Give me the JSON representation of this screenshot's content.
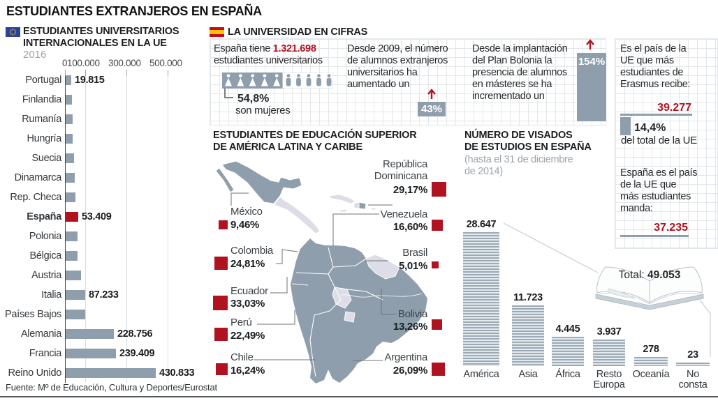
{
  "page_title": "ESTUDIANTES EXTRANJEROS EN ESPAÑA",
  "source_note": "Fuente: Mº de Educación, Cultura y Deportes/Eurostat",
  "colors": {
    "accent_red": "#b0121f",
    "slate_gray": "#8e9eac",
    "light_country": "#dcdde6",
    "grid_line": "#e2e7ea",
    "gray_text": "#9aa4ab"
  },
  "sections": {
    "eu_chart": {
      "title": "ESTUDIANTES UNIVERSITARIOS\nINTERNACIONALES EN LA UE",
      "year": "2016"
    },
    "cifras": {
      "title": "LA UNIVERSIDAD EN CIFRAS",
      "students": {
        "pre": "España tiene ",
        "value": "1.321.698",
        "post": "estudiantes universitarios",
        "women_pct": "54,8%",
        "women_caption": "son mujeres"
      },
      "increase": {
        "text": "Desde 2009, el número\nde alumnos extranjeros\nuniversitarios ha\naumentado un",
        "badge": "43%"
      },
      "bolonia": {
        "text": "Desde la implantación\ndel Plan Bolonia la\npresencia de alumnos\nen másteres se ha\nincrementado un",
        "badge": "154%"
      }
    },
    "erasmus": {
      "recibe_text": "Es el país de la\nUE que más\nestudiantes de\nErasmus recibe:",
      "recibe_value": "39.277",
      "share_pct": "14,4%",
      "share_caption": "del total de la UE",
      "manda_text": "España es el país\nde la UE que\nmás estudiantes\nmanda:",
      "manda_value": "37.235"
    },
    "latam": {
      "title": "ESTUDIANTES DE EDUCACIÓN SUPERIOR\nDE AMÉRICA LATINA Y CARIBE"
    },
    "visados": {
      "title": "NÚMERO DE VISADOS\nDE ESTUDIOS EN ESPAÑA",
      "subtitle": "(hasta el 31 de diciembre\nde 2014)",
      "total_label": "Total:",
      "total_value": "49.053"
    }
  },
  "chart_data": [
    {
      "id": "eu_international_students",
      "type": "bar",
      "orientation": "horizontal",
      "title": "ESTUDIANTES UNIVERSITARIOS INTERNACIONALES EN LA UE",
      "subtitle": "2016",
      "categories": [
        "Portugal",
        "Finlandia",
        "Rumanía",
        "Hungría",
        "Suecia",
        "Dinamarca",
        "Rep. Checa",
        "España",
        "Polonia",
        "Bélgica",
        "Austria",
        "Italia",
        "Países Bajos",
        "Alemania",
        "Francia",
        "Reino Unido"
      ],
      "values": [
        19815,
        23000,
        26000,
        28000,
        33000,
        36000,
        42000,
        53409,
        50000,
        52000,
        67000,
        87233,
        90000,
        228756,
        239409,
        430833
      ],
      "value_labels": [
        "19.815",
        null,
        null,
        null,
        null,
        null,
        null,
        "53.409",
        null,
        null,
        null,
        "87.233",
        null,
        "228.756",
        "239.409",
        "430.833"
      ],
      "values_note": "bars without printed labels are estimated from bar lengths",
      "highlight_category": "España",
      "xlim": [
        0,
        500000
      ],
      "x_ticks": [
        0,
        100000,
        300000,
        500000
      ],
      "x_tick_labels": [
        "0",
        "100.000",
        "300.000",
        "500.000"
      ],
      "grid": true,
      "legend": false
    },
    {
      "id": "latam_higher_education_share",
      "type": "table",
      "title": "ESTUDIANTES DE EDUCACIÓN SUPERIOR DE AMÉRICA LATINA Y CARIBE",
      "categories": [
        "México",
        "Colombia",
        "Ecuador",
        "Perú",
        "Chile",
        "República Dominicana",
        "Venezuela",
        "Brasil",
        "Bolivia",
        "Argentina"
      ],
      "values": [
        9.46,
        24.81,
        33.03,
        22.49,
        16.24,
        29.17,
        16.6,
        5.01,
        13.26,
        26.09
      ],
      "value_labels": [
        "9,46%",
        "24,81%",
        "33,03%",
        "22,49%",
        "16,24%",
        "29,17%",
        "16,60%",
        "5,01%",
        "13,26%",
        "26,09%"
      ]
    },
    {
      "id": "visados_estudios",
      "type": "bar",
      "orientation": "vertical",
      "title": "NÚMERO DE VISADOS DE ESTUDIOS EN ESPAÑA",
      "subtitle": "(hasta el 31 de diciembre de 2014)",
      "categories": [
        "América",
        "Asia",
        "África",
        "Resto Europa",
        "Oceanía",
        "No consta"
      ],
      "values": [
        28647,
        11723,
        4445,
        3937,
        278,
        23
      ],
      "value_labels": [
        "28.647",
        "11.723",
        "4.445",
        "3.937",
        "278",
        "23"
      ],
      "total_label": "Total:",
      "total_value": "49.053",
      "grid": false,
      "legend": false
    }
  ]
}
